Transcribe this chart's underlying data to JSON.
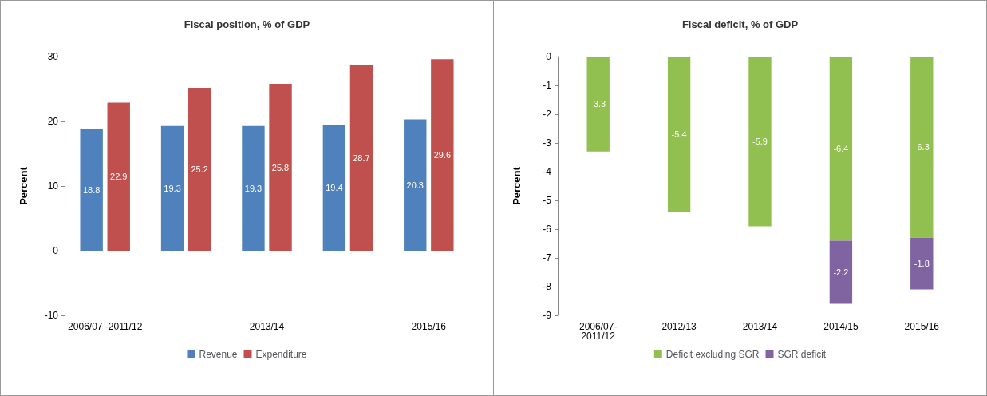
{
  "chart_data": [
    {
      "type": "bar",
      "title": "Fiscal position, % of GDP",
      "ylabel": "Percent",
      "categories": [
        "2006/07 -2011/12",
        null,
        "2013/14",
        null,
        "2015/16"
      ],
      "series": [
        {
          "name": "Revenue",
          "color": "#4f81bd",
          "values": [
            18.8,
            19.3,
            19.3,
            19.4,
            20.3
          ]
        },
        {
          "name": "Expenditure",
          "color": "#c0504d",
          "values": [
            22.9,
            25.2,
            25.8,
            28.7,
            29.6
          ]
        }
      ],
      "ref_lines": [
        {
          "axis": "y",
          "value": 0,
          "color": "#999999"
        }
      ],
      "ylim": [
        -10,
        30
      ],
      "yticks": [
        -10,
        0,
        10,
        20,
        30
      ],
      "grid": false,
      "legend": "bottom",
      "data_labels": true
    },
    {
      "type": "bar",
      "title": "Fiscal deficit, % of GDP",
      "ylabel": "Percent",
      "categories": [
        "2006/07-\n2011/12",
        "2012/13",
        "2013/14",
        "2014/15",
        "2015/16"
      ],
      "series": [
        {
          "name": "Deficit excluding SGR",
          "color": "#92c050",
          "values": [
            -3.3,
            -5.4,
            -5.9,
            -6.4,
            -6.3
          ]
        },
        {
          "name": "SGR deficit",
          "color": "#8064a2",
          "values": [
            null,
            null,
            null,
            -2.2,
            -1.8
          ]
        }
      ],
      "stacked": true,
      "ylim": [
        -9,
        0
      ],
      "yticks": [
        -9,
        -8,
        -7,
        -6,
        -5,
        -4,
        -3,
        -2,
        -1,
        0
      ],
      "grid": false,
      "legend": "bottom",
      "data_labels": true
    }
  ]
}
